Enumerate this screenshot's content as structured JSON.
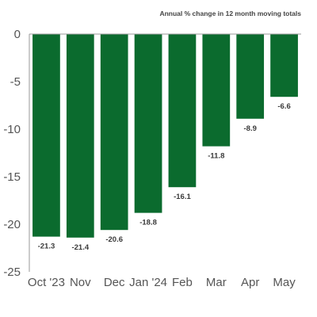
{
  "chart_data": {
    "type": "bar",
    "title": "",
    "subtitle": "Annual % change in 12 month moving totals",
    "xlabel": "",
    "ylabel": "",
    "categories": [
      "Oct '23",
      "Nov",
      "Dec",
      "Jan '24",
      "Feb",
      "Mar",
      "Apr",
      "May"
    ],
    "values": [
      -21.3,
      -21.4,
      -20.6,
      -18.8,
      -16.1,
      -11.8,
      -8.9,
      -6.6
    ],
    "data_labels": [
      "-21.3",
      "-21.4",
      "-20.6",
      "-18.8",
      "-16.1",
      "-11.8",
      "-8.9",
      "-6.6"
    ],
    "ylim": [
      -25,
      0
    ],
    "yticks": [
      0,
      -5,
      -10,
      -15,
      -20,
      -25
    ],
    "ytick_labels": [
      "0",
      "-5",
      "-10",
      "-15",
      "-20",
      "-25"
    ],
    "grid": false,
    "legend": "none",
    "colors": {
      "bar": "#0b6b2e",
      "axis": "#9a9a9a",
      "text": "#555555"
    }
  }
}
